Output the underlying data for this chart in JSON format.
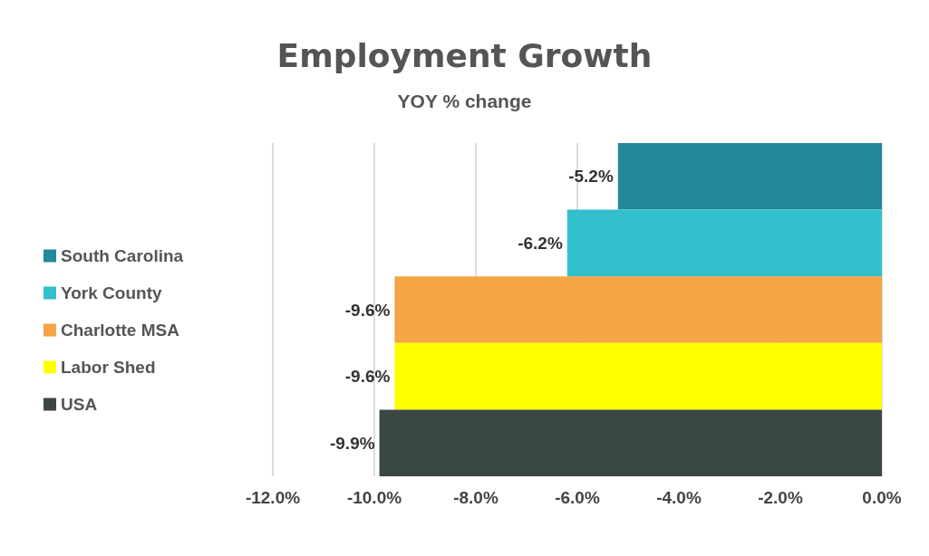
{
  "chart_data": {
    "type": "bar",
    "orientation": "horizontal",
    "title": "Employment Growth",
    "subtitle": "YOY % change",
    "categories": [
      null
    ],
    "series": [
      {
        "name": "South Carolina",
        "color": "#22889a",
        "values": [
          -5.2
        ],
        "value_labels": [
          "-5.2%"
        ]
      },
      {
        "name": "York County",
        "color": "#33bfcc",
        "values": [
          -6.2
        ],
        "value_labels": [
          "-6.2%"
        ]
      },
      {
        "name": "Charlotte MSA",
        "color": "#f5a446",
        "values": [
          -9.6
        ],
        "value_labels": [
          "-9.6%"
        ]
      },
      {
        "name": "Labor Shed",
        "color": "#ffff00",
        "values": [
          -9.6
        ],
        "value_labels": [
          "-9.6%"
        ]
      },
      {
        "name": "USA",
        "color": "#3a4744",
        "values": [
          -9.9
        ],
        "value_labels": [
          "-9.9%"
        ]
      }
    ],
    "xlim": [
      -12,
      0
    ],
    "xticks": [
      {
        "value": -12,
        "label": "-12.0%"
      },
      {
        "value": -10,
        "label": "-10.0%"
      },
      {
        "value": -8,
        "label": "-8.0%"
      },
      {
        "value": -6,
        "label": "-6.0%"
      },
      {
        "value": -4,
        "label": "-4.0%"
      },
      {
        "value": -2,
        "label": "-2.0%"
      },
      {
        "value": 0,
        "label": "0.0%"
      }
    ],
    "grid": "x",
    "legend": "left"
  }
}
